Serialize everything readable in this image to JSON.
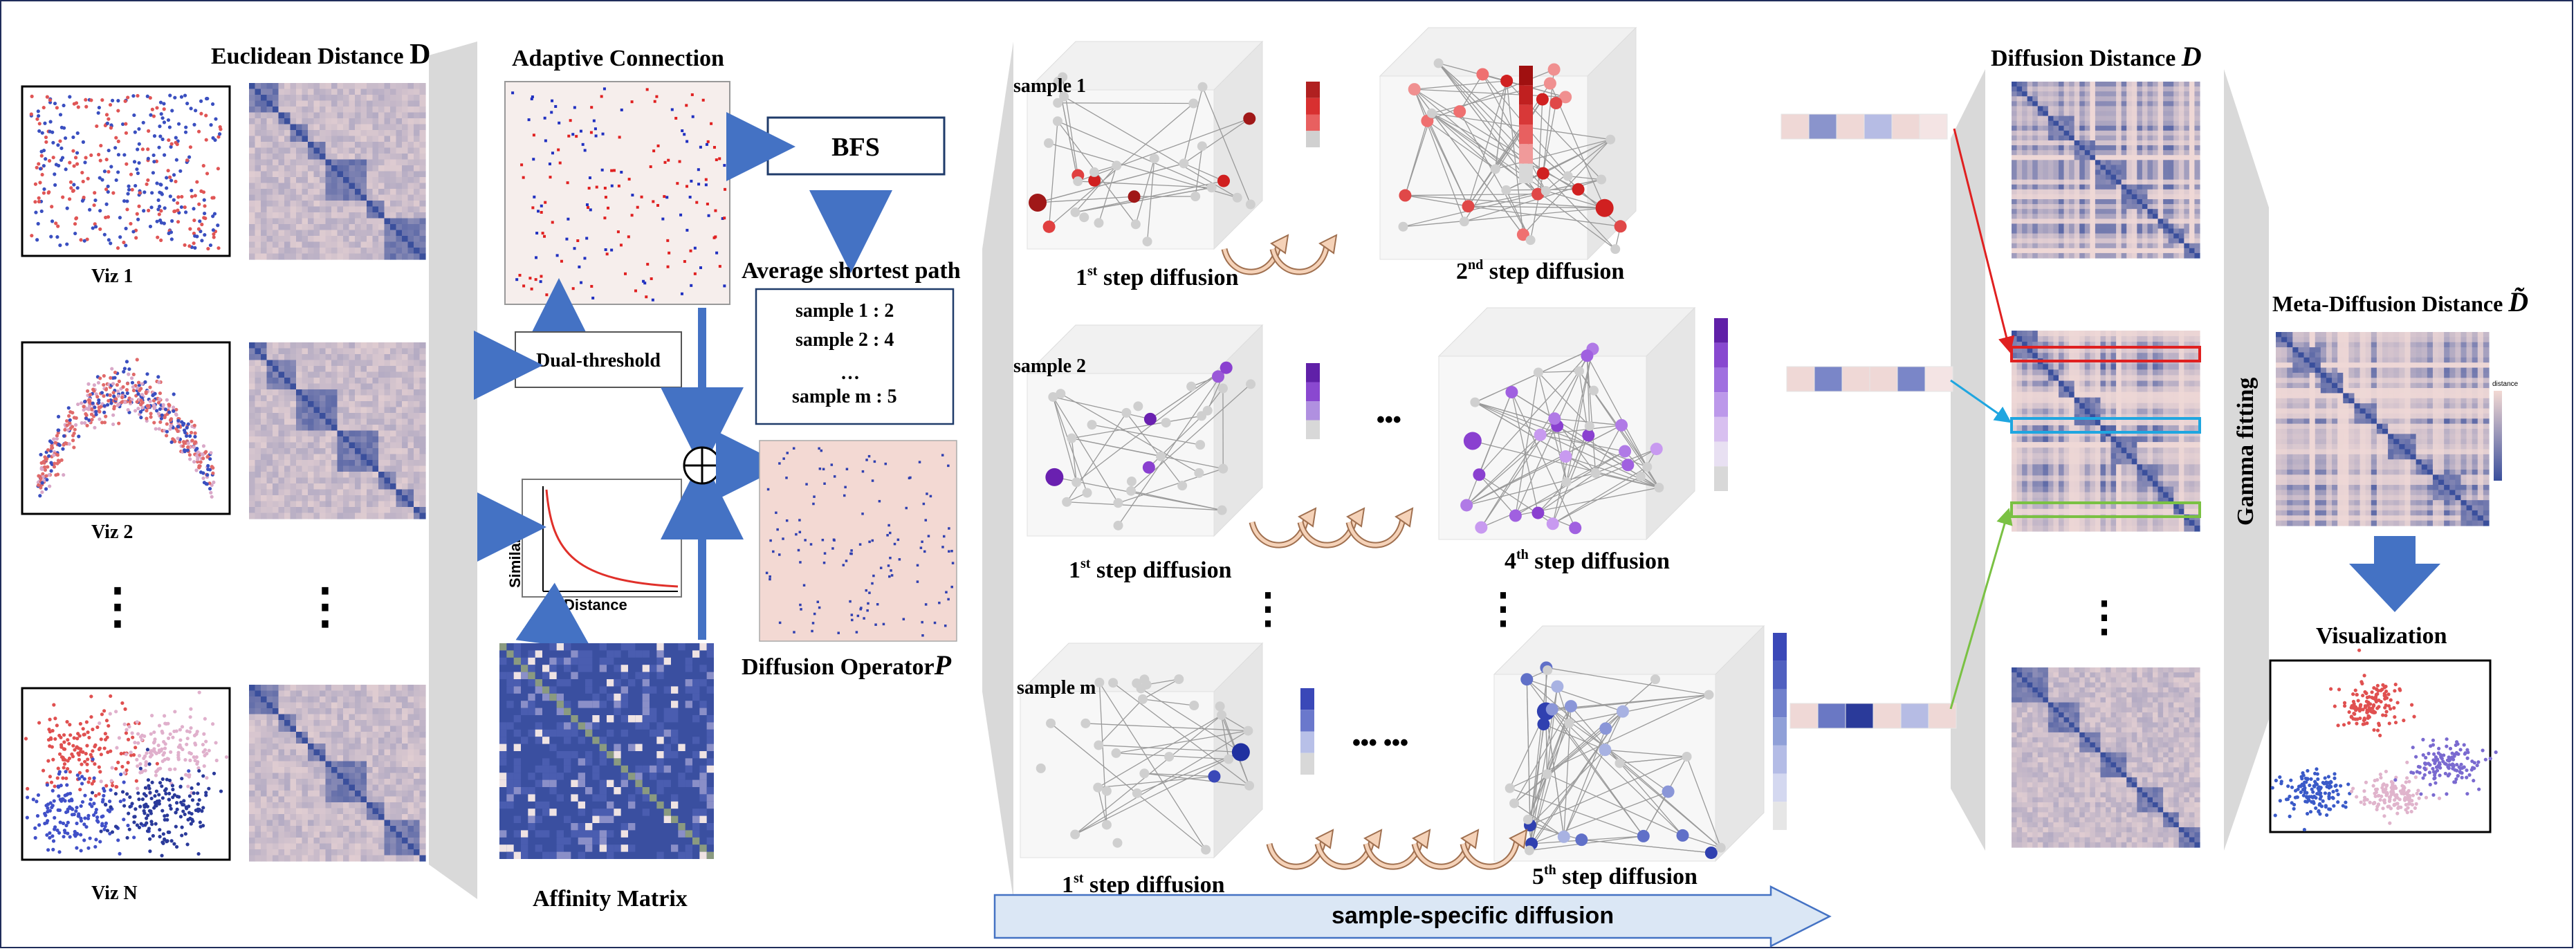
{
  "colors": {
    "blue_dark": "#3a4f9c",
    "pink": "#efd8d6",
    "red": "#c0282a",
    "purple": "#8a4bd1",
    "light_blue": "#5a6acb",
    "arrow_blue": "#4472c4",
    "grey_panel": "#d9d9d9",
    "box_red": "#e02020",
    "box_cyan": "#1fa6e0",
    "box_green": "#7ac143",
    "diffusion_arrow": "#dbe7f5"
  },
  "input": {
    "title_text": "Euclidean Distance ",
    "title_symbol": "D",
    "viz_labels": [
      "Viz 1",
      "Viz 2",
      "Viz N"
    ],
    "ellipsis": "⋮"
  },
  "operator": {
    "adaptive_title": "Adaptive Connection",
    "dual_threshold": "Dual-threshold",
    "bfs": "BFS",
    "avg_path_title": "Average shortest path",
    "samples": [
      "sample 1  : 2",
      "sample 2  : 4",
      "…",
      "sample m  : 5"
    ],
    "similarity_label": "Similarity",
    "distance_label": "Distance",
    "affinity_title": "Affinity Matrix",
    "diffusion_operator_text": "Diffusion Operator",
    "diffusion_operator_symbol": "P",
    "oplus": "⊕"
  },
  "diffusion": {
    "sample_names": [
      "sample 1",
      "sample 2",
      "sample m"
    ],
    "steps": [
      {
        "num": "1",
        "sup": "st",
        "text": " step diffusion"
      },
      {
        "num": "2",
        "sup": "nd",
        "text": " step diffusion"
      },
      {
        "num": "1",
        "sup": "st",
        "text": " step diffusion"
      },
      {
        "num": "4",
        "sup": "th",
        "text": " step diffusion"
      },
      {
        "num": "1",
        "sup": "st",
        "text": " step diffusion"
      },
      {
        "num": "5",
        "sup": "th",
        "text": " step diffusion"
      }
    ],
    "dots_row2": "•••",
    "dots_row3": "••• •••",
    "arrow_label": "sample-specific diffusion",
    "ellipsis": "⋮"
  },
  "output": {
    "diffusion_distance_text": "Diffusion Distance ",
    "diffusion_distance_symbol": "D",
    "gamma_fitting": "Gamma fitting",
    "meta_text": "Meta-Diffusion Distance ",
    "meta_symbol": "D̃",
    "visualization": "Visualization",
    "colorbar_label": "distance",
    "ellipsis": "⋮"
  }
}
